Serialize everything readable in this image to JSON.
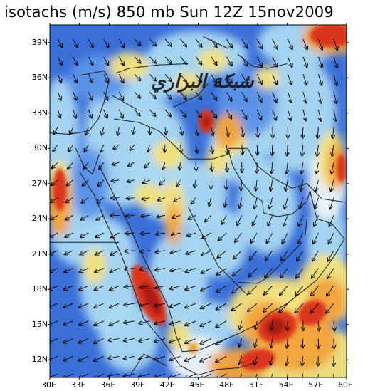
{
  "title": "isotachs (m/s) 850 mb Sun 12Z 15nov2009",
  "watermark": "شبكة البراري",
  "lat_labels": [
    "39N",
    "36N",
    "33N",
    "30N",
    "27N",
    "24N",
    "21N",
    "18N",
    "15N",
    "12N"
  ],
  "lon_labels": [
    "30E",
    "33E",
    "36E",
    "39E",
    "42E",
    "45E",
    "48E",
    "51E",
    "54E",
    "57E",
    "60E"
  ],
  "map": {
    "region": "Middle East / Arabian Peninsula",
    "lon_range": [
      30,
      60
    ],
    "lat_range": [
      10.5,
      40.5
    ],
    "field": "isotachs",
    "units": "m/s",
    "level": "850 mb"
  },
  "colors": {
    "slow_blue": "#2f5fd0",
    "mid_blue": "#5d94e8",
    "light_blue": "#a9d8f2",
    "white": "#eef6fa",
    "yellow": "#f6e27a",
    "orange": "#f2a23c",
    "red": "#d9351f",
    "dark_red": "#a81a12"
  }
}
